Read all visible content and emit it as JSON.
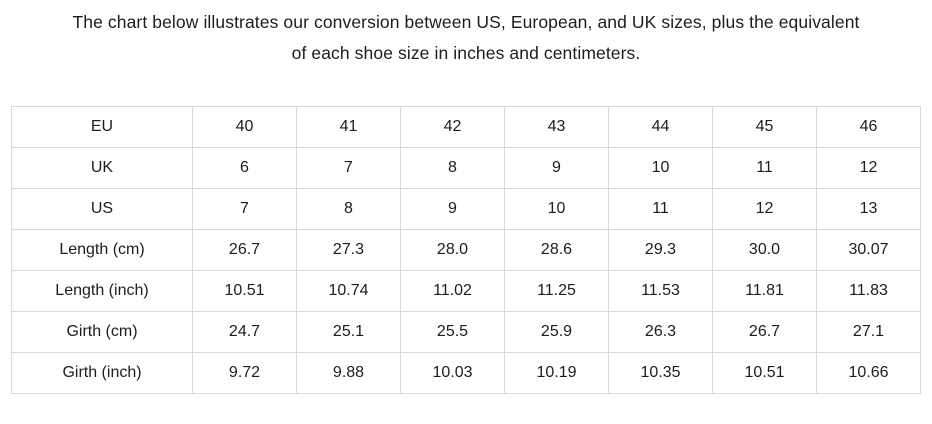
{
  "intro": {
    "line1": "The chart below illustrates our conversion between US, European, and UK sizes, plus the equivalent",
    "line2": "of each shoe size in inches and centimeters."
  },
  "table": {
    "rows": [
      {
        "label": "EU",
        "values": [
          "40",
          "41",
          "42",
          "43",
          "44",
          "45",
          "46"
        ]
      },
      {
        "label": "UK",
        "values": [
          "6",
          "7",
          "8",
          "9",
          "10",
          "11",
          "12"
        ]
      },
      {
        "label": "US",
        "values": [
          "7",
          "8",
          "9",
          "10",
          "11",
          "12",
          "13"
        ]
      },
      {
        "label": "Length (cm)",
        "values": [
          "26.7",
          "27.3",
          "28.0",
          "28.6",
          "29.3",
          "30.0",
          "30.07"
        ]
      },
      {
        "label": "Length (inch)",
        "values": [
          "10.51",
          "10.74",
          "11.02",
          "11.25",
          "11.53",
          "11.81",
          "11.83"
        ]
      },
      {
        "label": "Girth (cm)",
        "values": [
          "24.7",
          "25.1",
          "25.5",
          "25.9",
          "26.3",
          "26.7",
          "27.1"
        ]
      },
      {
        "label": "Girth (inch)",
        "values": [
          "9.72",
          "9.88",
          "10.03",
          "10.19",
          "10.35",
          "10.51",
          "10.66"
        ]
      }
    ]
  },
  "chart_data": {
    "type": "table",
    "title": "The chart below illustrates our conversion between US, European, and UK sizes, plus the equivalent of each shoe size in inches and centimeters.",
    "row_headers": [
      "EU",
      "UK",
      "US",
      "Length (cm)",
      "Length (inch)",
      "Girth (cm)",
      "Girth (inch)"
    ],
    "rows": [
      [
        40,
        41,
        42,
        43,
        44,
        45,
        46
      ],
      [
        6,
        7,
        8,
        9,
        10,
        11,
        12
      ],
      [
        7,
        8,
        9,
        10,
        11,
        12,
        13
      ],
      [
        26.7,
        27.3,
        28.0,
        28.6,
        29.3,
        30.0,
        30.07
      ],
      [
        10.51,
        10.74,
        11.02,
        11.25,
        11.53,
        11.81,
        11.83
      ],
      [
        24.7,
        25.1,
        25.5,
        25.9,
        26.3,
        26.7,
        27.1
      ],
      [
        9.72,
        9.88,
        10.03,
        10.19,
        10.35,
        10.51,
        10.66
      ]
    ],
    "layout": {
      "grid": true,
      "header_column": "left",
      "cell_alignment": "center"
    }
  },
  "colors": {
    "background": "#ffffff",
    "border": "#d9d9d9",
    "text": "#1d1d1d"
  }
}
